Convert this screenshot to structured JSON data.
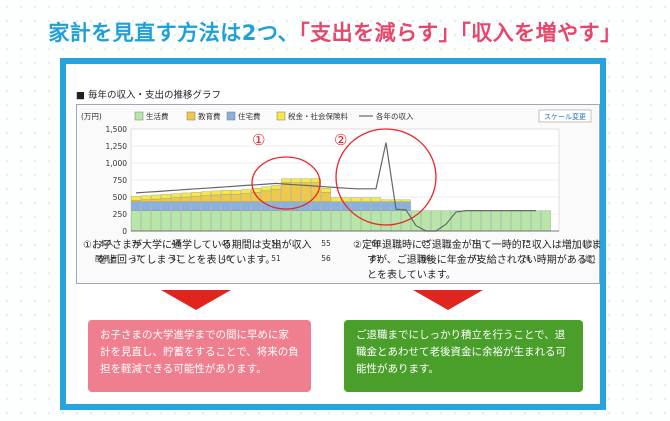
{
  "headline": {
    "part1": "家計を見直す方法は2つ、",
    "part2": "「支出を減らす」",
    "part3": "「収入を増やす」"
  },
  "chart_section": {
    "title": "■ 毎年の収入・支出の推移グラフ",
    "scale_button": "スケール変更",
    "row_label_self": "本人",
    "row_label_spouse": "配偶者",
    "unit_age": "(歳)"
  },
  "colors": {
    "living": "#b8e6a8",
    "education": "#f0c84a",
    "housing": "#8ab0e0",
    "tax": "#f5e84a",
    "income": "#666666",
    "circle": "#e8262a",
    "frame": "#28a4dc"
  },
  "chart_data": {
    "type": "bar",
    "title": "",
    "ylabel": "(万円)",
    "ylim": [
      0,
      1500
    ],
    "yticks": [
      "1,500",
      "1,250",
      "1,000",
      "750",
      "500",
      "250",
      "0"
    ],
    "x_start_age": 36,
    "x_end_age": 76,
    "self_ticks": [
      "36",
      "40",
      "45",
      "50",
      "55",
      "60",
      "65",
      "70",
      "75"
    ],
    "spouse_ticks": [
      "37",
      "41",
      "46",
      "51",
      "56",
      "61",
      "66",
      "71",
      "76"
    ],
    "legend": [
      "生活費",
      "教育費",
      "住宅費",
      "税金・社会保険料",
      "各年の収入"
    ],
    "annotations": [
      "①",
      "②"
    ],
    "series": [
      {
        "name": "生活費",
        "values": [
          300,
          300,
          300,
          300,
          300,
          300,
          300,
          300,
          300,
          300,
          300,
          300,
          300,
          300,
          300,
          300,
          300,
          300,
          300,
          300,
          300,
          300,
          300,
          300,
          300,
          300,
          300,
          300,
          300,
          300,
          300,
          300,
          300,
          300,
          300,
          300,
          300,
          300,
          300,
          300,
          300
        ]
      },
      {
        "name": "教育費",
        "values": [
          20,
          30,
          40,
          50,
          60,
          70,
          80,
          90,
          100,
          110,
          110,
          120,
          140,
          160,
          180,
          280,
          280,
          280,
          280,
          140,
          0,
          0,
          0,
          0,
          0,
          0,
          0,
          0,
          0,
          0,
          0,
          0,
          0,
          0,
          0,
          0,
          0,
          0,
          0,
          0,
          0
        ]
      },
      {
        "name": "住宅費",
        "values": [
          130,
          130,
          130,
          130,
          130,
          130,
          130,
          130,
          130,
          130,
          130,
          130,
          130,
          130,
          130,
          130,
          130,
          130,
          130,
          130,
          130,
          130,
          130,
          130,
          130,
          130,
          130,
          130,
          0,
          0,
          0,
          0,
          0,
          0,
          0,
          0,
          0,
          0,
          0,
          0,
          0
        ]
      },
      {
        "name": "税金・社会保険料",
        "values": [
          60,
          60,
          60,
          60,
          60,
          60,
          60,
          60,
          60,
          60,
          60,
          60,
          60,
          60,
          60,
          60,
          60,
          60,
          60,
          60,
          60,
          60,
          60,
          60,
          60,
          30,
          30,
          30,
          0,
          0,
          0,
          0,
          0,
          0,
          0,
          0,
          0,
          0,
          0,
          0,
          0
        ]
      },
      {
        "name": "各年の収入",
        "values": [
          560,
          570,
          580,
          590,
          600,
          610,
          620,
          630,
          640,
          650,
          660,
          670,
          680,
          690,
          700,
          690,
          680,
          670,
          660,
          650,
          640,
          630,
          620,
          620,
          620,
          1300,
          320,
          310,
          80,
          0,
          0,
          100,
          280,
          300,
          300,
          300,
          300,
          300,
          300,
          300,
          300
        ]
      }
    ]
  },
  "notes": {
    "note1": "①お子さまが大学に通学している期間は支出が収入を上回ってしまうことを表しています。",
    "note2": "②定年退職時にご退職金が出て一時的に収入は増加しますが、ご退職後に年金が支給されない時期があることを表しています。"
  },
  "cards": {
    "card1": "お子さまの大学進学までの間に早めに家計を見直し、貯蓄をすることで、将来の負担を軽減できる可能性があります。",
    "card2": "ご退職までにしっかり積立を行うことで、退職金とあわせて老後資金に余裕が生まれる可能性があります。"
  }
}
